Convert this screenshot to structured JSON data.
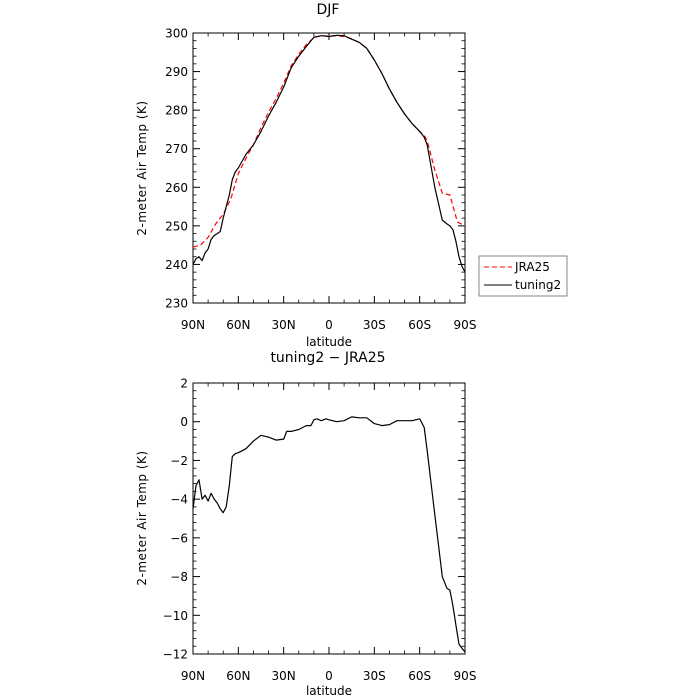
{
  "chart_data": [
    {
      "type": "line",
      "title": "DJF",
      "xlabel": "latitude",
      "ylabel": "2-meter Air Temp (K)",
      "xlim": [
        90,
        -90
      ],
      "ylim": [
        230,
        300
      ],
      "xticks": [
        90,
        60,
        30,
        0,
        -30,
        -60,
        -90
      ],
      "xtick_labels": [
        "90N",
        "60N",
        "30N",
        "0",
        "30S",
        "60S",
        "90S"
      ],
      "yticks": [
        230,
        240,
        250,
        260,
        270,
        280,
        290,
        300
      ],
      "ytick_labels": [
        "230",
        "240",
        "250",
        "260",
        "270",
        "280",
        "290",
        "300"
      ],
      "legend": "right",
      "series": [
        {
          "name": "JRA25",
          "color": "#ff0000",
          "dash": "dashed",
          "x": [
            90,
            85,
            80,
            75,
            70,
            65,
            60,
            55,
            50,
            45,
            40,
            35,
            30,
            25,
            20,
            15,
            10,
            5,
            0,
            -5,
            -10,
            -15,
            -20,
            -25,
            -30,
            -35,
            -40,
            -45,
            -50,
            -55,
            -60,
            -63,
            -65,
            -70,
            -75,
            -80,
            -85,
            -90
          ],
          "y": [
            244.5,
            245,
            247,
            250.5,
            253,
            257,
            263.5,
            267.5,
            271,
            275.5,
            279.5,
            283,
            287,
            291.5,
            294.5,
            297,
            298.8,
            299.3,
            299.2,
            299.3,
            299.1,
            298.5,
            297.5,
            296,
            293,
            289.5,
            285.5,
            282,
            279,
            276.5,
            274.5,
            273.5,
            272,
            264.5,
            258.5,
            258,
            251,
            250
          ]
        },
        {
          "name": "tuning2",
          "color": "#000000",
          "dash": "solid",
          "x": [
            90,
            88,
            86,
            84,
            82,
            80,
            78,
            76,
            74,
            72,
            70,
            68,
            66,
            64,
            62,
            60,
            55,
            50,
            45,
            40,
            35,
            30,
            25,
            20,
            15,
            10,
            5,
            0,
            -5,
            -10,
            -15,
            -20,
            -25,
            -30,
            -35,
            -40,
            -45,
            -50,
            -55,
            -60,
            -63,
            -65,
            -70,
            -75,
            -78,
            -80,
            -82,
            -84,
            -86,
            -88,
            -90
          ],
          "y": [
            240,
            241.5,
            242,
            241,
            243,
            244,
            246.5,
            247.5,
            248,
            248.5,
            252,
            255,
            258,
            262,
            264,
            265,
            268.5,
            271,
            274.5,
            278.5,
            282,
            286,
            291,
            294,
            296.5,
            298.9,
            299.3,
            299.1,
            299.4,
            299.3,
            298.4,
            297.6,
            296,
            293,
            289.5,
            285.5,
            282,
            279,
            276.5,
            274.5,
            273,
            271,
            260,
            251.5,
            250.5,
            250,
            249,
            246,
            242,
            239.5,
            238
          ]
        }
      ]
    },
    {
      "type": "line",
      "title": "tuning2 − JRA25",
      "xlabel": "latitude",
      "ylabel": "2-meter Air Temp (K)",
      "xlim": [
        90,
        -90
      ],
      "ylim": [
        -12,
        2
      ],
      "xticks": [
        90,
        60,
        30,
        0,
        -30,
        -60,
        -90
      ],
      "xtick_labels": [
        "90N",
        "60N",
        "30N",
        "0",
        "30S",
        "60S",
        "90S"
      ],
      "yticks": [
        -12,
        -10,
        -8,
        -6,
        -4,
        -2,
        0,
        2
      ],
      "ytick_labels": [
        "−12",
        "−10",
        "−8",
        "−6",
        "−4",
        "−2",
        "0",
        "2"
      ],
      "series": [
        {
          "color": "#000000",
          "dash": "solid",
          "x": [
            90,
            88,
            86,
            84,
            82,
            80,
            78,
            76,
            74,
            72,
            70,
            68,
            66,
            64,
            62,
            60,
            55,
            50,
            45,
            40,
            35,
            30,
            28,
            25,
            20,
            15,
            12,
            10,
            8,
            5,
            2,
            0,
            -5,
            -10,
            -15,
            -20,
            -25,
            -30,
            -35,
            -40,
            -45,
            -50,
            -55,
            -60,
            -63,
            -65,
            -70,
            -75,
            -78,
            -80,
            -82,
            -84,
            -86,
            -88,
            -90
          ],
          "y": [
            -4.5,
            -3.3,
            -3.0,
            -4.0,
            -3.8,
            -4.1,
            -3.7,
            -4.0,
            -4.2,
            -4.5,
            -4.7,
            -4.4,
            -3.3,
            -1.8,
            -1.65,
            -1.6,
            -1.4,
            -1.0,
            -0.7,
            -0.8,
            -0.95,
            -0.9,
            -0.5,
            -0.5,
            -0.4,
            -0.2,
            -0.2,
            0.1,
            0.15,
            0.05,
            0.15,
            0.1,
            0.0,
            0.05,
            0.25,
            0.2,
            0.2,
            -0.1,
            -0.2,
            -0.15,
            0.05,
            0.05,
            0.05,
            0.15,
            -0.3,
            -1.5,
            -4.8,
            -8.0,
            -8.6,
            -8.7,
            -9.5,
            -10.5,
            -11.5,
            -11.7,
            -11.9
          ]
        }
      ]
    }
  ]
}
